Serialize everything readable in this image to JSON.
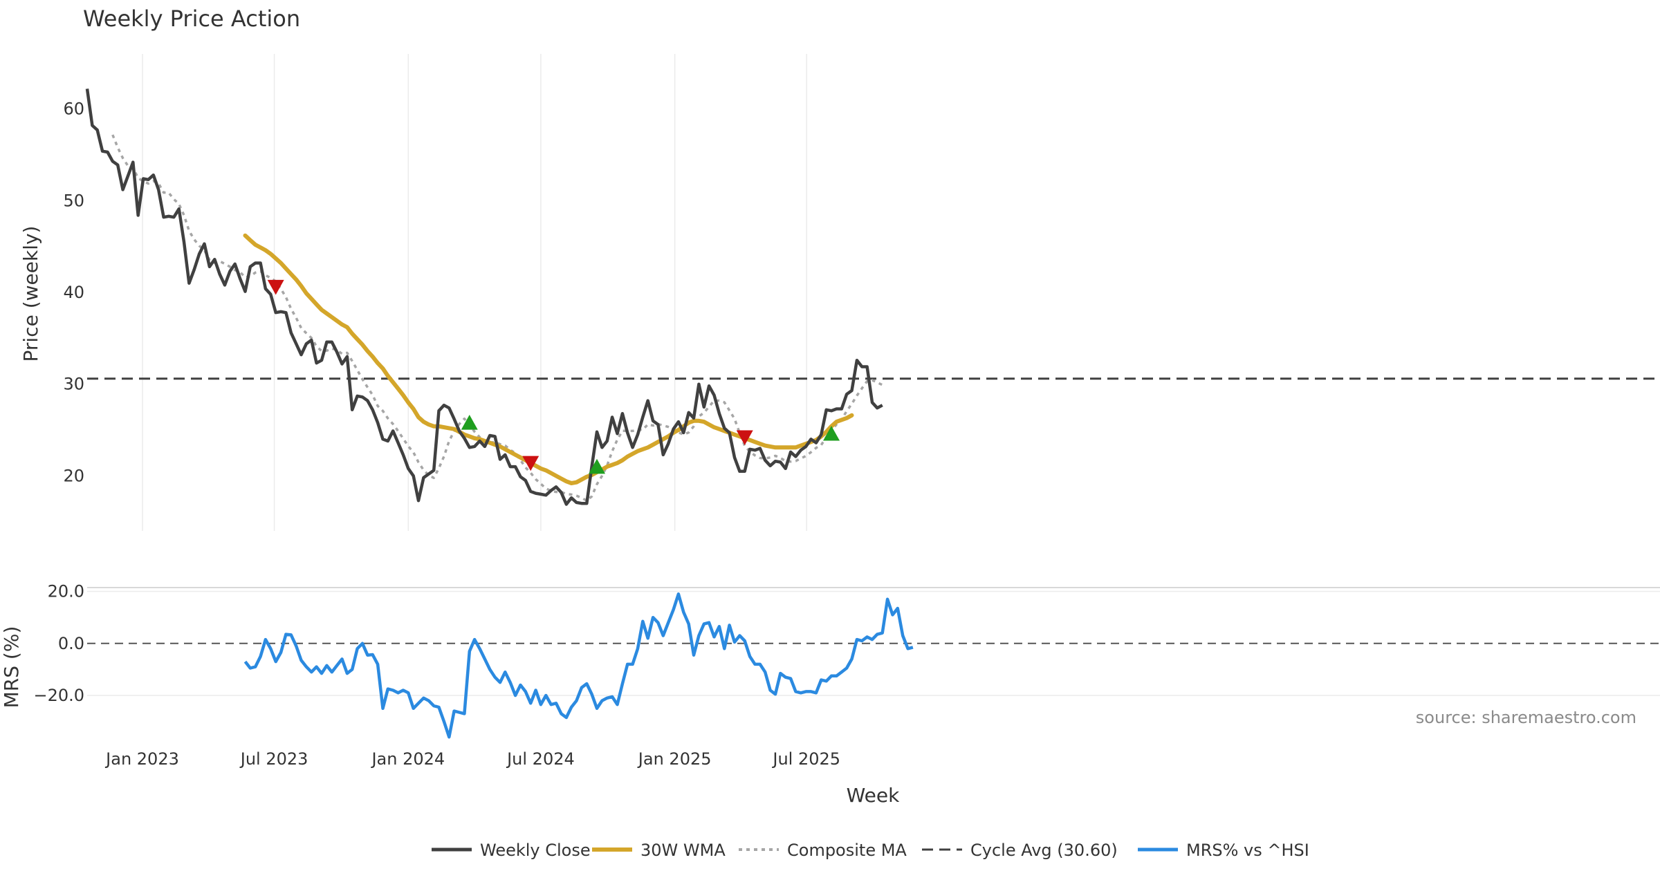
{
  "chart_data": {
    "type": "line",
    "title": "Weekly Price Action",
    "xlabel": "Week",
    "source": "source: sharemaestro.com",
    "x_start": "2022-10-17",
    "x_step_days": 7,
    "x_ticks": [
      "Jan 2023",
      "Jul 2023",
      "Jan 2024",
      "Jul 2024",
      "Jan 2025",
      "Jul 2025"
    ],
    "x_tick_dates": [
      "2023-01-01",
      "2023-07-01",
      "2024-01-01",
      "2024-07-01",
      "2025-01-01",
      "2025-07-01"
    ],
    "grid": "vertical",
    "legend": "bottom",
    "colors": {
      "close": "#404040",
      "wma": "#d4a62a",
      "composite": "#a6a6a6",
      "cycle": "#404040",
      "mrs": "#2b8ae0",
      "buy": "#1f9e1f",
      "sell": "#cc1111"
    },
    "price_panel": {
      "ylabel": "Price (weekly)",
      "ylim": [
        14,
        66
      ],
      "yticks": [
        20,
        30,
        40,
        50,
        60
      ],
      "cycle_avg": 30.6,
      "close": [
        62.2,
        58.2,
        57.7,
        55.4,
        55.3,
        54.3,
        53.9,
        51.2,
        52.7,
        54.2,
        48.4,
        52.4,
        52.3,
        52.8,
        51.2,
        48.2,
        48.3,
        48.2,
        49.1,
        45.5,
        41.0,
        42.5,
        44.2,
        45.3,
        42.8,
        43.6,
        42.0,
        40.8,
        42.3,
        43.1,
        41.5,
        40.1,
        42.8,
        43.2,
        43.2,
        40.4,
        39.8,
        37.8,
        37.9,
        37.8,
        35.6,
        34.4,
        33.2,
        34.4,
        34.8,
        32.3,
        32.6,
        34.6,
        34.6,
        33.5,
        32.2,
        33.0,
        27.2,
        28.7,
        28.6,
        28.2,
        27.2,
        25.8,
        24.0,
        23.8,
        24.9,
        23.6,
        22.3,
        20.8,
        20.0,
        17.3,
        19.8,
        20.2,
        20.6,
        27.1,
        27.7,
        27.4,
        26.2,
        24.9,
        24.1,
        23.1,
        23.2,
        23.8,
        23.2,
        24.4,
        24.3,
        21.8,
        22.3,
        21.0,
        21.0,
        19.9,
        19.5,
        18.3,
        18.1,
        18.0,
        17.9,
        18.4,
        18.8,
        18.2,
        16.9,
        17.6,
        17.1,
        17.0,
        17.0,
        21.0,
        24.8,
        23.1,
        23.8,
        26.4,
        24.6,
        26.8,
        24.7,
        23.1,
        24.5,
        26.4,
        28.2,
        26.0,
        25.6,
        22.3,
        23.5,
        25.1,
        25.9,
        24.7,
        26.9,
        26.3,
        30.0,
        27.5,
        29.8,
        28.8,
        26.8,
        25.2,
        24.7,
        22.0,
        20.5,
        20.5,
        22.9,
        22.8,
        23.0,
        21.7,
        21.1,
        21.6,
        21.5,
        20.8,
        22.6,
        22.1,
        22.8,
        23.2,
        24.0,
        23.6,
        24.5,
        27.2,
        27.1,
        27.3,
        27.3,
        28.9,
        29.3,
        32.6,
        31.9,
        31.9,
        28.0,
        27.4,
        27.7
      ],
      "wma_start_index": 31,
      "wma": [
        46.2,
        45.7,
        45.2,
        44.9,
        44.6,
        44.2,
        43.7,
        43.2,
        42.6,
        42.0,
        41.4,
        40.7,
        39.9,
        39.3,
        38.7,
        38.1,
        37.7,
        37.3,
        36.9,
        36.5,
        36.2,
        35.5,
        34.9,
        34.3,
        33.6,
        33.0,
        32.3,
        31.7,
        30.9,
        30.2,
        29.5,
        28.8,
        28.0,
        27.3,
        26.4,
        25.9,
        25.6,
        25.4,
        25.4,
        25.3,
        25.2,
        25.1,
        24.8,
        24.5,
        24.3,
        24.1,
        24.0,
        23.8,
        23.6,
        23.4,
        23.2,
        22.9,
        22.6,
        22.3,
        22.0,
        21.7,
        21.4,
        21.1,
        20.8,
        20.6,
        20.3,
        20.0,
        19.7,
        19.4,
        19.2,
        19.3,
        19.6,
        19.9,
        20.1,
        20.4,
        20.7,
        21.0,
        21.2,
        21.4,
        21.7,
        22.1,
        22.4,
        22.7,
        22.9,
        23.1,
        23.4,
        23.7,
        24.0,
        24.3,
        24.7,
        25.0,
        25.4,
        25.8,
        26.0,
        26.0,
        25.9,
        25.6,
        25.3,
        25.1,
        24.9,
        24.7,
        24.5,
        24.3,
        24.1,
        23.9,
        23.7,
        23.5,
        23.3,
        23.2,
        23.1,
        23.1,
        23.1,
        23.1,
        23.1,
        23.3,
        23.5,
        23.7,
        23.9,
        24.3,
        24.8,
        25.4,
        25.9,
        26.1,
        26.3,
        26.6
      ]
    },
    "mrs_panel": {
      "ylabel": "MRS (%)",
      "ylim": [
        -37,
        22
      ],
      "yticks": [
        -20.0,
        0.0,
        20.0
      ],
      "start_index": 31,
      "mrs": [
        -7.0,
        -9.5,
        -9.0,
        -5.0,
        1.5,
        -2.0,
        -7.0,
        -3.5,
        3.5,
        3.3,
        -1.0,
        -6.5,
        -9.0,
        -11.0,
        -9.0,
        -11.5,
        -8.5,
        -11.0,
        -8.5,
        -6.0,
        -11.5,
        -10.0,
        -2.0,
        0.0,
        -4.5,
        -4.3,
        -8.0,
        -25.0,
        -17.5,
        -18.0,
        -19.0,
        -18.0,
        -19.0,
        -25.0,
        -23.0,
        -21.0,
        -22.0,
        -24.0,
        -24.5,
        -30.0,
        -36.0,
        -26.0,
        -26.5,
        -27.0,
        -3.0,
        1.5,
        -2.0,
        -6.0,
        -10.0,
        -13.0,
        -15.0,
        -11.0,
        -15.0,
        -20.0,
        -16.0,
        -18.5,
        -23.0,
        -18.0,
        -23.5,
        -20.0,
        -23.5,
        -23.0,
        -27.0,
        -28.5,
        -24.5,
        -22.0,
        -17.0,
        -15.5,
        -19.5,
        -25.0,
        -22.0,
        -21.0,
        -20.5,
        -23.5,
        -15.5,
        -8.0,
        -8.0,
        -2.0,
        8.5,
        2.0,
        10.0,
        8.0,
        3.0,
        8.0,
        13.0,
        19.0,
        12.0,
        7.5,
        -4.5,
        3.0,
        7.5,
        8.0,
        2.5,
        6.5,
        -2.0,
        7.0,
        0.5,
        3.0,
        1.0,
        -5.0,
        -8.0,
        -8.0,
        -11.0,
        -18.0,
        -19.5,
        -11.5,
        -13.0,
        -13.5,
        -18.5,
        -19.0,
        -18.5,
        -18.5,
        -19.0,
        -14.0,
        -14.5,
        -12.5,
        -12.5,
        -11.0,
        -9.5,
        -6.0,
        1.5,
        1.0,
        2.5,
        1.5,
        3.5,
        4.0,
        17.0,
        11.0,
        13.5,
        3.0,
        -2.0,
        -1.5
      ]
    },
    "markers": [
      {
        "type": "sell",
        "index": 37,
        "y": 40.6
      },
      {
        "type": "buy",
        "index": 75,
        "y": 25.8
      },
      {
        "type": "sell",
        "index": 87,
        "y": 21.4
      },
      {
        "type": "buy",
        "index": 100,
        "y": 21.0
      },
      {
        "type": "sell",
        "index": 129,
        "y": 24.2
      },
      {
        "type": "buy",
        "index": 146,
        "y": 24.6
      }
    ],
    "legend_items": [
      {
        "key": "close",
        "label": "Weekly Close"
      },
      {
        "key": "wma",
        "label": "30W WMA"
      },
      {
        "key": "composite",
        "label": "Composite MA"
      },
      {
        "key": "cycle",
        "label": "Cycle Avg (30.60)"
      },
      {
        "key": "mrs",
        "label": "MRS% vs ^HSI"
      }
    ]
  }
}
